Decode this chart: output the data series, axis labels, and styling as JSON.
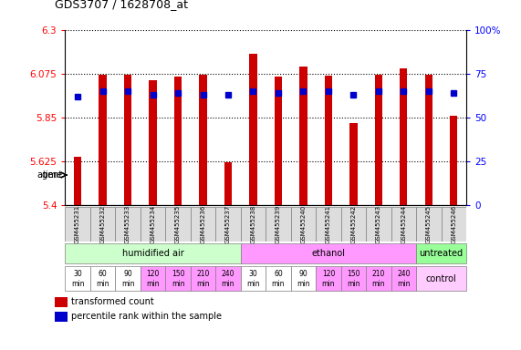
{
  "title": "GDS3707 / 1628708_at",
  "samples": [
    "GSM455231",
    "GSM455232",
    "GSM455233",
    "GSM455234",
    "GSM455235",
    "GSM455236",
    "GSM455237",
    "GSM455238",
    "GSM455239",
    "GSM455240",
    "GSM455241",
    "GSM455242",
    "GSM455243",
    "GSM455244",
    "GSM455245",
    "GSM455246"
  ],
  "transformed_counts": [
    5.645,
    6.07,
    6.07,
    6.04,
    6.06,
    6.07,
    5.62,
    6.175,
    6.06,
    6.11,
    6.065,
    5.82,
    6.07,
    6.1,
    6.07,
    5.86
  ],
  "percentile_ranks": [
    62,
    65,
    65,
    63,
    64,
    63,
    63,
    65,
    64,
    65,
    65,
    63,
    65,
    65,
    65,
    64
  ],
  "ylim_left": [
    5.4,
    6.3
  ],
  "ylim_right": [
    0,
    100
  ],
  "yticks_left": [
    5.4,
    5.625,
    5.85,
    6.075,
    6.3
  ],
  "ytick_labels_left": [
    "5.4",
    "5.625",
    "5.85",
    "6.075",
    "6.3"
  ],
  "yticks_right": [
    0,
    25,
    50,
    75,
    100
  ],
  "ytick_labels_right": [
    "0",
    "25",
    "50",
    "75",
    "100%"
  ],
  "bar_color": "#cc0000",
  "dot_color": "#0000cc",
  "agent_labels": [
    "humidified air",
    "ethanol",
    "untreated"
  ],
  "agent_col_ranges": [
    [
      0,
      7
    ],
    [
      7,
      14
    ],
    [
      14,
      16
    ]
  ],
  "agent_colors": [
    "#ccffcc",
    "#ff99ff",
    "#99ff99"
  ],
  "time_labels": [
    "30\nmin",
    "60\nmin",
    "90\nmin",
    "120\nmin",
    "150\nmin",
    "210\nmin",
    "240\nmin",
    "30\nmin",
    "60\nmin",
    "90\nmin",
    "120\nmin",
    "150\nmin",
    "210\nmin",
    "240\nmin"
  ],
  "time_col_colors": [
    "#ffffff",
    "#ffffff",
    "#ffffff",
    "#ff99ff",
    "#ff99ff",
    "#ff99ff",
    "#ff99ff",
    "#ffffff",
    "#ffffff",
    "#ffffff",
    "#ff99ff",
    "#ff99ff",
    "#ff99ff",
    "#ff99ff"
  ],
  "control_label": "control",
  "control_color": "#ffccff",
  "legend_bar_label": "transformed count",
  "legend_dot_label": "percentile rank within the sample",
  "sample_box_color": "#dddddd",
  "left_label_color": "#ff0000",
  "right_label_color": "#0000ff"
}
